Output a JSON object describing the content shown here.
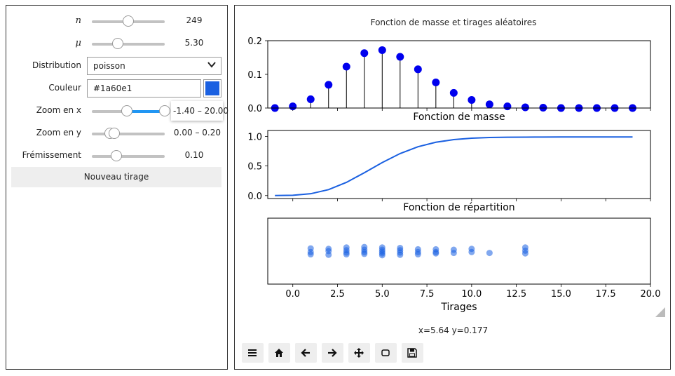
{
  "controls": {
    "n": {
      "label": "n",
      "value": 249,
      "display": "249",
      "fraction": 0.5
    },
    "mu": {
      "label": "μ",
      "value": 5.3,
      "display": "5.30",
      "fraction": 0.36
    },
    "distribution": {
      "label": "Distribution",
      "selected": "poisson"
    },
    "color": {
      "label": "Couleur",
      "value": "#1a60e1",
      "swatch": "#1a60e1"
    },
    "zoom_x": {
      "label": "Zoom en x",
      "low": -1.4,
      "high": 20.0,
      "display": "-1.40 – 20.00"
    },
    "zoom_y": {
      "label": "Zoom en y",
      "low": 0.0,
      "high": 0.2,
      "display": "0.00 – 0.20"
    },
    "jitter": {
      "label": "Frémissement",
      "value": 0.1,
      "display": "0.10"
    },
    "new_draw_label": "Nouveau tirage"
  },
  "figure": {
    "suptitle": "Fonction de masse et tirages aléatoires",
    "coords": "x=5.64 y=0.177",
    "toolbar": [
      "menu-icon",
      "home-icon",
      "back-icon",
      "forward-icon",
      "pan-icon",
      "zoom-rect-icon",
      "save-icon"
    ]
  },
  "chart_data": [
    {
      "type": "stem",
      "title": "",
      "xlabel": "Fonction de masse",
      "xlim": [
        -1.4,
        20.0
      ],
      "ylim": [
        0,
        0.2
      ],
      "yticks": [
        "0.0",
        "0.1",
        "0.2"
      ],
      "color": "#0000ee",
      "x": [
        -1,
        0,
        1,
        2,
        3,
        4,
        5,
        6,
        7,
        8,
        9,
        10,
        11,
        12,
        13,
        14,
        15,
        16,
        17,
        18,
        19
      ],
      "y": [
        0.0,
        0.005,
        0.026,
        0.069,
        0.123,
        0.163,
        0.172,
        0.152,
        0.115,
        0.076,
        0.045,
        0.024,
        0.011,
        0.005,
        0.002,
        0.001,
        0.0,
        0.0,
        0.0,
        0.0,
        0.0
      ]
    },
    {
      "type": "line",
      "xlabel": "Fonction de répartition",
      "xlim": [
        -1.4,
        20.0
      ],
      "ylim": [
        -0.05,
        1.1
      ],
      "yticks": [
        "0.0",
        "0.5",
        "1.0"
      ],
      "color": "#1a60e1",
      "x": [
        -1,
        0,
        1,
        2,
        3,
        4,
        5,
        6,
        7,
        8,
        9,
        10,
        11,
        12,
        13,
        14,
        15,
        16,
        17,
        18,
        19
      ],
      "y": [
        0.0,
        0.005,
        0.031,
        0.1,
        0.223,
        0.386,
        0.558,
        0.71,
        0.825,
        0.901,
        0.946,
        0.97,
        0.981,
        0.986,
        0.988,
        0.989,
        0.99,
        0.99,
        0.99,
        0.99,
        0.99
      ]
    },
    {
      "type": "scatter",
      "xlabel": "Tirages",
      "xlim": [
        -1.4,
        20.0
      ],
      "xticks": [
        "0.0",
        "2.5",
        "5.0",
        "7.5",
        "10.0",
        "12.5",
        "15.0",
        "17.5",
        "20.0"
      ],
      "color": "#1a60e1",
      "x": [
        1,
        1,
        1,
        2,
        2,
        2,
        3,
        3,
        3,
        3,
        4,
        4,
        4,
        4,
        5,
        5,
        5,
        5,
        5,
        6,
        6,
        6,
        6,
        7,
        7,
        7,
        8,
        8,
        8,
        9,
        9,
        10,
        10,
        11,
        13,
        13,
        13
      ],
      "jitter": [
        -0.06,
        0.02,
        0.07,
        -0.05,
        0.0,
        0.08,
        -0.08,
        -0.02,
        0.03,
        0.07,
        -0.09,
        -0.03,
        0.02,
        0.06,
        -0.08,
        -0.03,
        0.01,
        0.05,
        0.09,
        -0.07,
        -0.02,
        0.03,
        0.08,
        -0.04,
        0.02,
        0.07,
        -0.04,
        0.02,
        0.05,
        -0.03,
        0.04,
        -0.05,
        0.02,
        0.04,
        -0.08,
        -0.01,
        0.05
      ]
    }
  ]
}
